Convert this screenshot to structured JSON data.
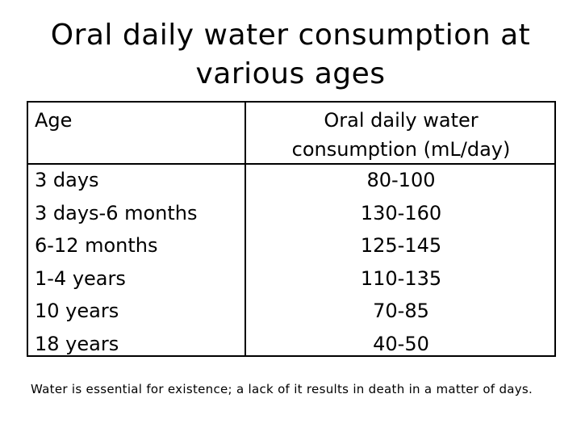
{
  "title": {
    "line1": "Oral daily water consumption at",
    "line2": "various ages"
  },
  "table": {
    "headers": {
      "age": "Age",
      "water_line1": "Oral daily water",
      "water_line2": "consumption (mL/day)"
    },
    "rows": [
      {
        "age": "3 days",
        "water": "80-100"
      },
      {
        "age": "3 days-6 months",
        "water": "130-160"
      },
      {
        "age": "6-12 months",
        "water": "125-145"
      },
      {
        "age": "1-4 years",
        "water": "110-135"
      },
      {
        "age": "10 years",
        "water": "70-85"
      },
      {
        "age": "18 years",
        "water": "40-50"
      }
    ]
  },
  "note": "Water is essential for existence; a lack of it results in death in a matter of days."
}
